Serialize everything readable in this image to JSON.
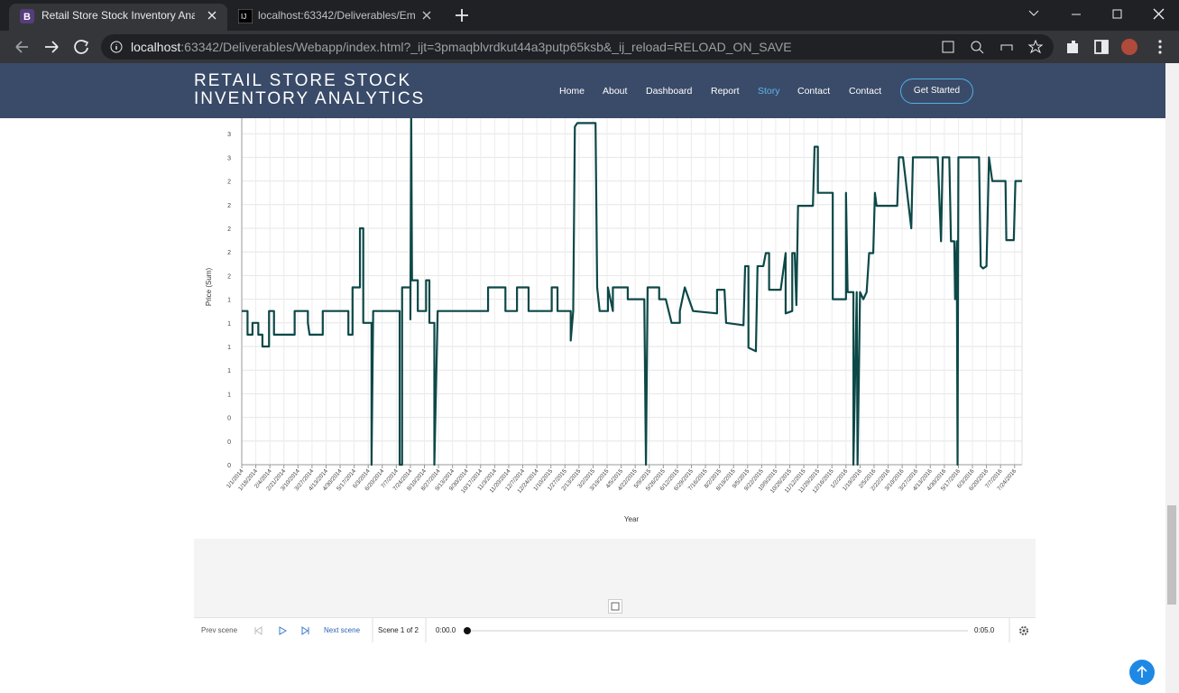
{
  "browser": {
    "tabs": [
      "Retail Store Stock Inventory Analy",
      "localhost:63342/Deliverables/Em"
    ],
    "url_host": "localhost",
    "url_rest": ":63342/Deliverables/Webapp/index.html?_ijt=3pmaqblvrdkut44a3putp65ksb&_ij_reload=RELOAD_ON_SAVE"
  },
  "navbar": {
    "brand": "RETAIL STORE STOCK INVENTORY ANALYTICS",
    "links": [
      "Home",
      "About",
      "Dashboard",
      "Report",
      "Story",
      "Contact",
      "Contact"
    ],
    "button": "Get Started"
  },
  "chart_data": {
    "type": "line",
    "x_label": "Year",
    "y_label": "Price (Sum)",
    "color": "#0d4848",
    "grid": true,
    "xlim": [
      "1/1/2014",
      "8/2/2016"
    ],
    "xticks": [
      "1/1/2014",
      "1/18/2014",
      "2/4/2014",
      "2/21/2014",
      "3/10/2014",
      "3/27/2014",
      "4/13/2014",
      "4/30/2014",
      "5/17/2014",
      "6/3/2014",
      "6/20/2014",
      "7/7/2014",
      "7/24/2014",
      "8/10/2014",
      "8/27/2014",
      "9/13/2014",
      "9/30/2014",
      "10/17/2014",
      "11/3/2014",
      "11/20/2014",
      "12/7/2014",
      "12/24/2014",
      "1/10/2015",
      "1/27/2015",
      "2/13/2015",
      "3/2/2015",
      "3/19/2015",
      "4/5/2015",
      "4/22/2015",
      "5/9/2015",
      "5/26/2015",
      "6/12/2015",
      "6/29/2015",
      "7/16/2015",
      "8/2/2015",
      "8/19/2015",
      "9/5/2015",
      "9/22/2015",
      "10/9/2015",
      "10/26/2015",
      "11/12/2015",
      "11/29/2015",
      "12/16/2015",
      "1/2/2016",
      "1/19/2016",
      "2/5/2016",
      "2/22/2016",
      "3/10/2016",
      "3/27/2016",
      "4/13/2016",
      "4/30/2016",
      "5/17/2016",
      "6/3/2016",
      "6/20/2016",
      "7/7/2016",
      "7/24/2016"
    ],
    "ylim": [
      0,
      3
    ],
    "yticks": [
      0,
      {
        "value": 0.2,
        "label": "0"
      },
      {
        "value": 0.4,
        "label": "0"
      },
      {
        "value": 0.6,
        "label": "1"
      },
      {
        "value": 0.8,
        "label": "1"
      },
      1,
      {
        "value": 1.2,
        "label": "1"
      },
      {
        "value": 1.4,
        "label": "1"
      },
      {
        "value": 1.6,
        "label": "2"
      },
      {
        "value": 1.8,
        "label": "2"
      },
      2,
      {
        "value": 2.2,
        "label": "2"
      },
      {
        "value": 2.4,
        "label": "2"
      },
      {
        "value": 2.6,
        "label": "3"
      },
      {
        "value": 2.8,
        "label": "3"
      }
    ],
    "x": [
      "1/1/2014",
      "1/8/2014",
      "1/8/2014",
      "1/14/2014",
      "1/14/2014",
      "1/21/2014",
      "1/21/2014",
      "1/26/2014",
      "1/26/2014",
      "2/3/2014",
      "2/3/2014",
      "2/9/2014",
      "2/9/2014",
      "3/6/2014",
      "3/6/2014",
      "3/22/2014",
      "3/22/2014",
      "3/24/2014",
      "4/9/2014",
      "4/9/2014",
      "5/10/2014",
      "5/10/2014",
      "5/15/2014",
      "5/15/2014",
      "5/24/2014",
      "5/24/2014",
      "5/28/2014",
      "5/28/2014",
      "6/7/2014",
      "6/7/2014",
      "6/9/2014",
      "7/11/2014",
      "7/11/2014",
      "7/14/2014",
      "7/14/2014",
      "7/24/2014",
      "7/24/2014",
      "7/25/2014",
      "7/26/2014",
      "8/2/2014",
      "8/2/2014",
      "8/12/2014",
      "8/12/2014",
      "8/16/2014",
      "8/16/2014",
      "8/22/2014",
      "8/22/2014",
      "8/26/2014",
      "10/26/2014",
      "10/26/2014",
      "11/16/2014",
      "11/16/2014",
      "11/30/2014",
      "11/30/2014",
      "12/14/2014",
      "12/14/2014",
      "1/11/2015",
      "1/11/2015",
      "1/18/2015",
      "1/18/2015",
      "2/3/2015",
      "2/3/2015",
      "2/6/2015",
      "2/8/2015",
      "2/11/2015",
      "3/5/2015",
      "3/7/2015",
      "3/10/2015",
      "3/20/2015",
      "3/20/2015",
      "3/26/2015",
      "3/26/2015",
      "4/13/2015",
      "4/13/2015",
      "5/3/2015",
      "5/5/2015",
      "5/7/2015",
      "5/21/2015",
      "5/21/2015",
      "5/29/2015",
      "6/5/2015",
      "6/15/2015",
      "6/15/2015",
      "6/21/2015",
      "6/26/2015",
      "7/1/2015",
      "7/30/2015",
      "7/30/2015",
      "8/8/2015",
      "8/10/2015",
      "8/31/2015",
      "9/2/2015",
      "9/6/2015",
      "9/6/2015",
      "9/15/2015",
      "9/17/2015",
      "9/24/2015",
      "9/27/2015",
      "10/1/2015",
      "10/1/2015",
      "10/15/2015",
      "10/21/2015",
      "10/21/2015",
      "10/29/2015",
      "10/29/2015",
      "11/1/2015",
      "11/3/2015",
      "11/5/2015",
      "11/23/2015",
      "11/25/2015",
      "11/29/2015",
      "11/29/2015",
      "12/17/2015",
      "12/17/2015",
      "1/2/2016",
      "1/2/2016",
      "1/4/2016",
      "1/11/2016",
      "1/11/2016",
      "1/15/2016",
      "1/16/2016",
      "1/19/2016",
      "1/23/2016",
      "1/27/2016",
      "1/30/2016",
      "2/4/2016",
      "2/6/2016",
      "2/8/2016",
      "3/4/2016",
      "3/6/2016",
      "3/11/2016",
      "3/21/2016",
      "3/23/2016",
      "4/22/2016",
      "4/26/2016",
      "4/28/2016",
      "5/6/2016",
      "5/8/2016",
      "5/12/2016",
      "5/13/2016",
      "5/15/2016",
      "5/16/2016",
      "5/17/2016",
      "6/11/2016",
      "6/13/2016",
      "6/16/2016",
      "6/20/2016",
      "6/23/2016",
      "6/27/2016",
      "7/13/2016",
      "7/14/2016",
      "7/23/2016",
      "7/25/2016",
      "8/2/2016"
    ],
    "values": [
      1.3,
      1.3,
      1.1,
      1.1,
      1.2,
      1.2,
      1.1,
      1.1,
      1.0,
      1.0,
      1.3,
      1.3,
      1.1,
      1.1,
      1.3,
      1.3,
      1.2,
      1.1,
      1.1,
      1.3,
      1.3,
      1.1,
      1.1,
      1.5,
      1.5,
      2.0,
      2.0,
      1.2,
      1.2,
      0,
      1.3,
      1.3,
      0,
      0,
      1.5,
      1.5,
      1.23,
      3.0,
      1.56,
      1.56,
      1.3,
      1.3,
      1.56,
      1.56,
      1.2,
      1.2,
      0,
      1.3,
      1.3,
      1.5,
      1.5,
      1.3,
      1.3,
      1.5,
      1.5,
      1.3,
      1.3,
      1.5,
      1.5,
      1.3,
      1.3,
      1.05,
      1.3,
      2.86,
      2.89,
      2.89,
      1.5,
      1.3,
      1.3,
      1.5,
      1.3,
      1.5,
      1.5,
      1.4,
      1.4,
      0,
      1.5,
      1.5,
      1.4,
      1.4,
      1.2,
      1.2,
      1.3,
      1.5,
      1.4,
      1.3,
      1.28,
      1.48,
      1.48,
      1.2,
      1.18,
      1.68,
      1.68,
      0.99,
      0.96,
      1.68,
      1.68,
      1.79,
      1.79,
      1.48,
      1.48,
      1.79,
      1.28,
      1.3,
      1.79,
      1.79,
      1.35,
      2.19,
      2.19,
      2.69,
      2.69,
      2.3,
      2.3,
      1.4,
      1.4,
      2.3,
      1.46,
      1.46,
      0,
      1.46,
      0,
      1.46,
      1.4,
      1.46,
      1.79,
      1.79,
      2.3,
      2.19,
      2.19,
      2.6,
      2.6,
      2.0,
      2.6,
      2.6,
      1.89,
      2.6,
      2.6,
      1.89,
      1.89,
      1.4,
      1.89,
      0,
      2.6,
      2.6,
      1.68,
      1.66,
      1.68,
      2.6,
      2.4,
      2.4,
      1.9,
      1.9,
      2.4,
      2.4
    ]
  },
  "story_controls": {
    "prev": "Prev scene",
    "next": "Next scene",
    "scene": "Scene 1 of 2",
    "start": "0:00.0",
    "end": "0:05.0"
  }
}
